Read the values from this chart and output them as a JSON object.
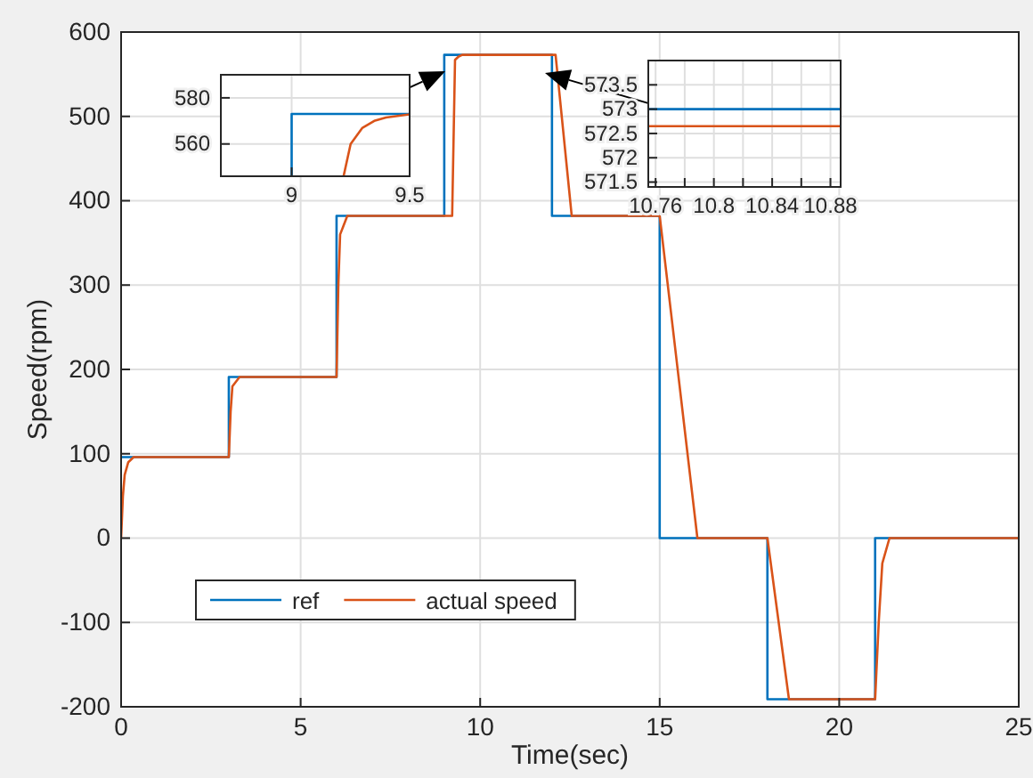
{
  "chart_data": [
    {
      "type": "line",
      "xlabel": "Time(sec)",
      "ylabel": "Speed(rpm)",
      "xlim": [
        0,
        25
      ],
      "ylim": [
        -200,
        600
      ],
      "xticks": [
        0,
        5,
        10,
        15,
        20,
        25
      ],
      "yticks": [
        -200,
        -100,
        0,
        100,
        200,
        300,
        400,
        500,
        600
      ],
      "grid": true,
      "legend": "bottom left",
      "series": [
        {
          "name": "ref",
          "color": "#0072bd",
          "x": [
            0,
            3,
            3,
            6,
            6,
            9,
            9,
            12,
            12,
            15,
            15,
            18,
            18,
            21,
            21,
            25
          ],
          "values": [
            96,
            96,
            191,
            191,
            382,
            382,
            573,
            573,
            382,
            382,
            0,
            0,
            -191,
            -191,
            0,
            0
          ]
        },
        {
          "name": "actual speed",
          "color": "#d95319",
          "x": [
            0,
            0.05,
            0.1,
            0.2,
            0.35,
            3,
            3.05,
            3.1,
            3.3,
            6,
            6.05,
            6.1,
            6.3,
            9.22,
            9.3,
            9.4,
            9.5,
            12.1,
            12.55,
            15,
            16.05,
            18,
            18.6,
            21,
            21.1,
            21.2,
            21.4,
            25
          ],
          "values": [
            0,
            50,
            75,
            90,
            96,
            96,
            150,
            180,
            191,
            191,
            300,
            360,
            382,
            382,
            567,
            571,
            573,
            573,
            382,
            382,
            0,
            0,
            -191,
            -191,
            -100,
            -30,
            0,
            0
          ]
        }
      ]
    },
    {
      "type": "line",
      "xlim": [
        8.7,
        9.5
      ],
      "ylim": [
        546,
        590
      ],
      "xticks": [
        9,
        9.5
      ],
      "yticks": [
        560,
        580
      ],
      "grid": true,
      "series": [
        {
          "color": "#0072bd",
          "x": [
            9,
            9,
            9.5
          ],
          "values": [
            546,
            573,
            573
          ]
        },
        {
          "color": "#d95319",
          "x": [
            9.22,
            9.25,
            9.3,
            9.35,
            9.4,
            9.5
          ],
          "values": [
            546,
            560,
            567,
            570,
            571.5,
            572.8
          ]
        }
      ]
    },
    {
      "type": "line",
      "xlim": [
        10.755,
        10.887
      ],
      "ylim": [
        571.4,
        574
      ],
      "xticks": [
        10.76,
        {
          "value": 10.78,
          "label": null
        },
        10.8,
        {
          "value": 10.82,
          "label": null
        },
        10.84,
        {
          "value": 10.86,
          "label": null
        },
        10.88
      ],
      "yticks": [
        571.5,
        572,
        572.5,
        573,
        573.5
      ],
      "grid": true,
      "series": [
        {
          "color": "#0072bd",
          "x": [
            10.755,
            10.887
          ],
          "values": [
            573,
            573
          ]
        },
        {
          "color": "#d95319",
          "x": [
            10.755,
            10.887
          ],
          "values": [
            572.65,
            572.65
          ]
        }
      ]
    }
  ]
}
